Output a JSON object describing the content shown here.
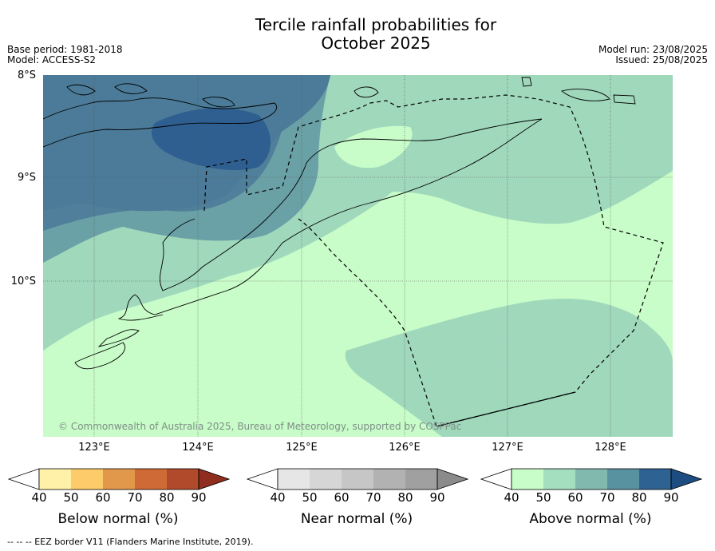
{
  "title_line1": "Tercile rainfall probabilities for",
  "title_line2": "October 2025",
  "meta_left": [
    "Base period: 1981-2018",
    "Model: ACCESS-S2"
  ],
  "meta_right": [
    "Model run: 23/08/2025",
    "Issued: 25/08/2025"
  ],
  "lat_labels": [
    "8°S",
    "9°S",
    "10°S"
  ],
  "lon_labels": [
    "123°E",
    "124°E",
    "125°E",
    "126°E",
    "127°E",
    "128°E"
  ],
  "copyright": "© Commonwealth of Australia 2025, Bureau of Meteorology, supported by COSPPac",
  "colorbars": [
    {
      "label": "Below normal (%)",
      "ticks": [
        "40",
        "50",
        "60",
        "70",
        "80",
        "90"
      ],
      "colors": [
        "#fff1a8",
        "#fdcb6a",
        "#e2984b",
        "#cf6a36",
        "#b04a2a",
        "#8f2e1e"
      ]
    },
    {
      "label": "Near normal (%)",
      "ticks": [
        "40",
        "50",
        "60",
        "70",
        "80",
        "90"
      ],
      "colors": [
        "#e6e6e6",
        "#d6d6d6",
        "#c6c6c6",
        "#b2b2b2",
        "#a0a0a0",
        "#8b8b8b"
      ]
    },
    {
      "label": "Above normal (%)",
      "ticks": [
        "40",
        "50",
        "60",
        "70",
        "80",
        "90"
      ],
      "colors": [
        "#c8fcc8",
        "#a4dfc0",
        "#82b9ae",
        "#5891a0",
        "#2e6292",
        "#1d4d80"
      ]
    }
  ],
  "footer": "--  --  -- EEZ border V11 (Flanders Marine Institute, 2019)."
}
